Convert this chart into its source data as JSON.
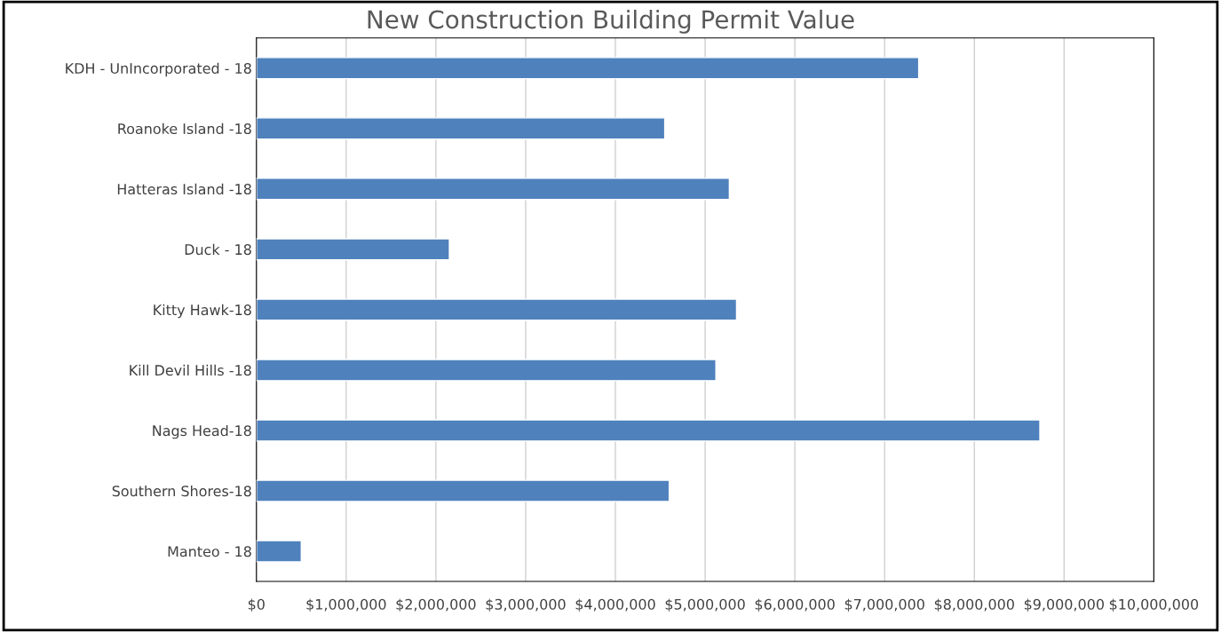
{
  "chart_data": {
    "type": "bar",
    "orientation": "horizontal",
    "title": "New Construction Building Permit Value",
    "categories": [
      "KDH - UnIncorporated - 18",
      "Roanoke Island -18",
      "Hatteras Island -18",
      "Duck - 18",
      "Kitty Hawk-18",
      "Kill Devil Hills -18",
      "Nags Head-18",
      "Southern Shores-18",
      "Manteo - 18"
    ],
    "values": [
      7380000,
      4550000,
      5270000,
      2150000,
      5350000,
      5120000,
      8730000,
      4600000,
      500000
    ],
    "color": "#4f81bd",
    "xlim": [
      0,
      10000000
    ],
    "xticks": [
      {
        "value": 0,
        "label": "$0"
      },
      {
        "value": 1000000,
        "label": "$1,000,000"
      },
      {
        "value": 2000000,
        "label": "$2,000,000"
      },
      {
        "value": 3000000,
        "label": "$3,000,000"
      },
      {
        "value": 4000000,
        "label": "$4,000,000"
      },
      {
        "value": 5000000,
        "label": "$5,000,000"
      },
      {
        "value": 6000000,
        "label": "$6,000,000"
      },
      {
        "value": 7000000,
        "label": "$7,000,000"
      },
      {
        "value": 8000000,
        "label": "$8,000,000"
      },
      {
        "value": 9000000,
        "label": "$9,000,000"
      },
      {
        "value": 10000000,
        "label": "$10,000,000"
      }
    ],
    "grid": "x"
  }
}
